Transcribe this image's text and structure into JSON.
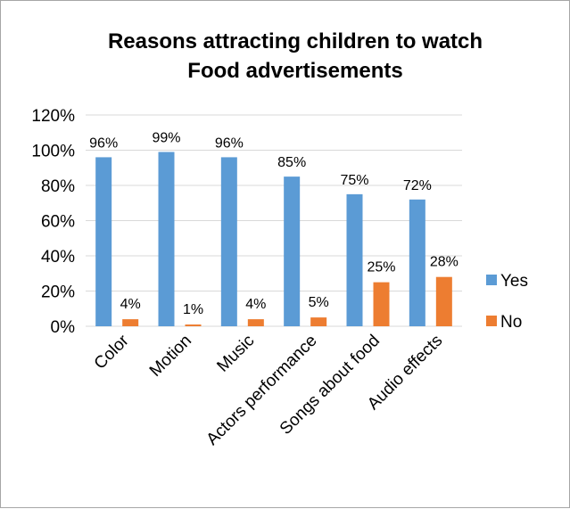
{
  "chart_data": {
    "type": "bar",
    "title": [
      "Reasons attracting children to watch",
      "Food advertisements"
    ],
    "categories": [
      "Color",
      "Motion",
      "Music",
      "Actors performance",
      "Songs about food",
      "Audio effects"
    ],
    "series": [
      {
        "name": "Yes",
        "color": "#5b9bd5",
        "values": [
          96,
          99,
          96,
          85,
          75,
          72
        ],
        "labels": [
          "96%",
          "99%",
          "96%",
          "85%",
          "75%",
          "72%"
        ]
      },
      {
        "name": "No",
        "color": "#ed7d31",
        "values": [
          4,
          1,
          4,
          5,
          25,
          28
        ],
        "labels": [
          "4%",
          "1%",
          "4%",
          "5%",
          "25%",
          "28%"
        ]
      }
    ],
    "ylim": [
      0,
      120
    ],
    "yticks": [
      0,
      20,
      40,
      60,
      80,
      100,
      120
    ],
    "ytick_labels": [
      "0%",
      "20%",
      "40%",
      "60%",
      "80%",
      "100%",
      "120%"
    ],
    "grid": true,
    "legend": "right"
  }
}
